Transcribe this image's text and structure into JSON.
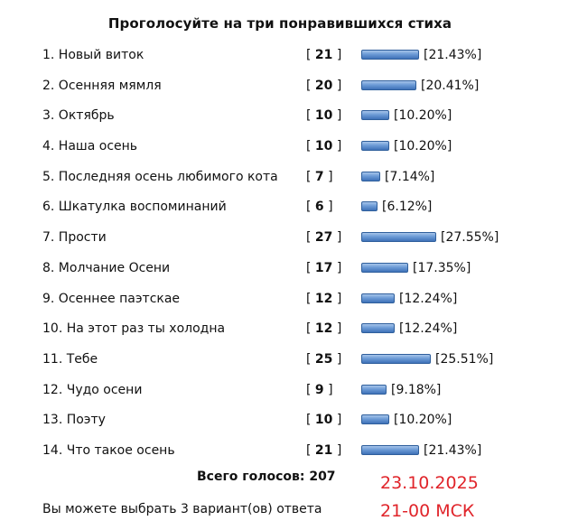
{
  "poll": {
    "title": "Проголосуйте на три понравившихся стиха",
    "options": [
      {
        "label": "1. Новый виток",
        "votes": "21",
        "percent_text": "[21.43%]",
        "percent": 21.43
      },
      {
        "label": "2. Осенняя мямля",
        "votes": "20",
        "percent_text": "[20.41%]",
        "percent": 20.41
      },
      {
        "label": "3. Октябрь",
        "votes": "10",
        "percent_text": "[10.20%]",
        "percent": 10.2
      },
      {
        "label": "4. Наша осень",
        "votes": "10",
        "percent_text": "[10.20%]",
        "percent": 10.2
      },
      {
        "label": "5. Последняя осень любимого кота",
        "votes": "7",
        "percent_text": "[7.14%]",
        "percent": 7.14
      },
      {
        "label": "6. Шкатулка воспоминаний",
        "votes": "6",
        "percent_text": "[6.12%]",
        "percent": 6.12
      },
      {
        "label": "7. Прости",
        "votes": "27",
        "percent_text": "[27.55%]",
        "percent": 27.55
      },
      {
        "label": "8. Молчание Осени",
        "votes": "17",
        "percent_text": "[17.35%]",
        "percent": 17.35
      },
      {
        "label": "9. Осеннее паэтскае",
        "votes": "12",
        "percent_text": "[12.24%]",
        "percent": 12.24
      },
      {
        "label": "10. На этот раз ты холодна",
        "votes": "12",
        "percent_text": "[12.24%]",
        "percent": 12.24
      },
      {
        "label": "11. Тебе",
        "votes": "25",
        "percent_text": "[25.51%]",
        "percent": 25.51
      },
      {
        "label": "12. Чудо осени",
        "votes": "9",
        "percent_text": "[9.18%]",
        "percent": 9.18
      },
      {
        "label": "13. Поэту",
        "votes": "10",
        "percent_text": "[10.20%]",
        "percent": 10.2
      },
      {
        "label": "14. Что такое осень",
        "votes": "21",
        "percent_text": "[21.43%]",
        "percent": 21.43
      }
    ],
    "total_text": "Всего голосов: 207",
    "hint_text": "Вы можете выбрать 3 вариант(ов) ответа"
  },
  "overlay": {
    "date": "23.10.2025",
    "time": "21-00 МСК",
    "color": "#e0242a"
  },
  "colors": {
    "bar_fill": "#6c9bd6",
    "bar_border": "#2f5f9c"
  }
}
